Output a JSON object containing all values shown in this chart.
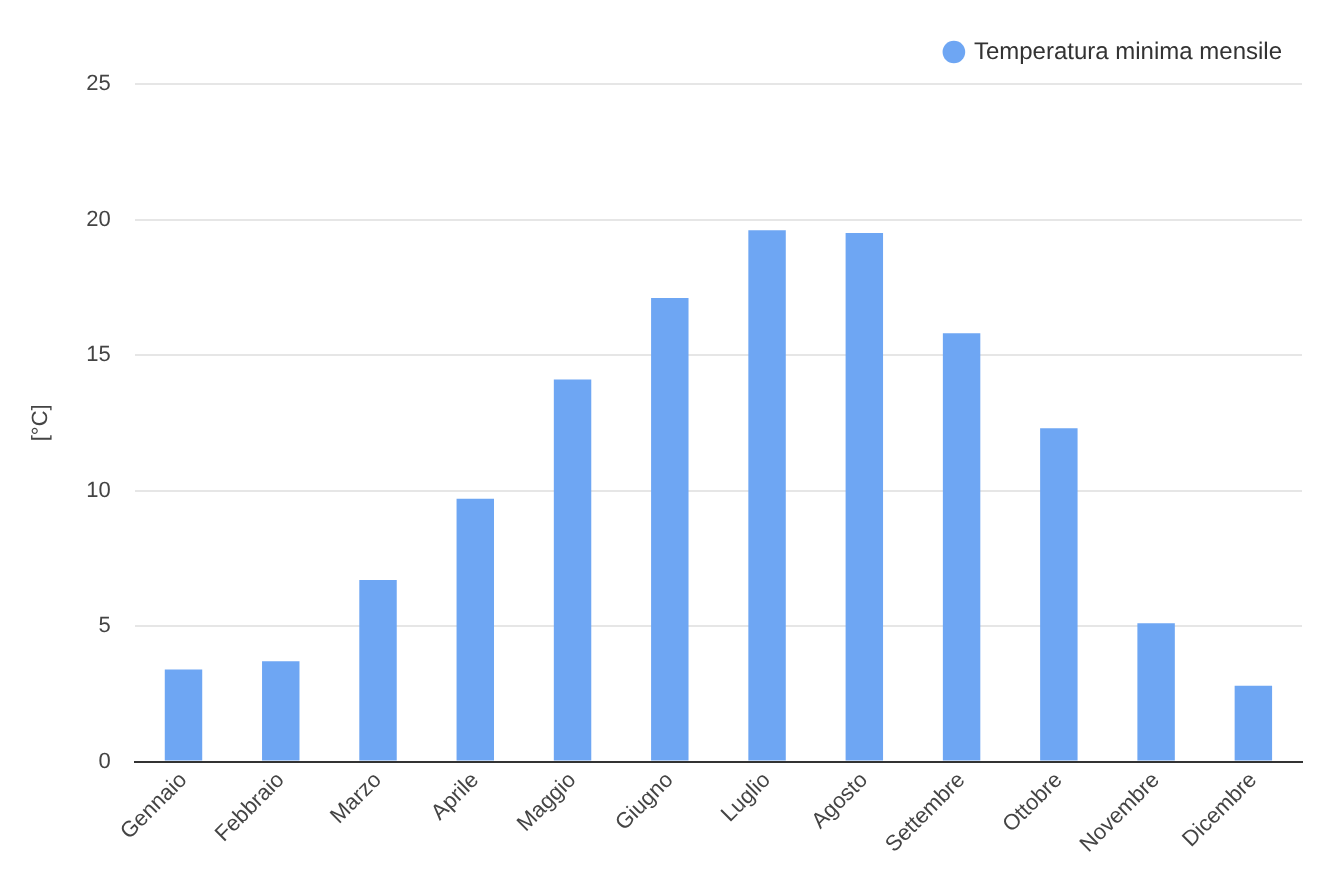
{
  "chart_data": {
    "type": "bar",
    "ylabel": "[°C]",
    "categories": [
      "Gennaio",
      "Febbraio",
      "Marzo",
      "Aprile",
      "Maggio",
      "Giugno",
      "Luglio",
      "Agosto",
      "Settembre",
      "Ottobre",
      "Novembre",
      "Dicembre"
    ],
    "series": [
      {
        "name": "Temperatura minima mensile",
        "color": "#6ea6f3",
        "values": [
          3.4,
          3.7,
          6.7,
          9.7,
          14.1,
          17.1,
          19.6,
          19.5,
          15.8,
          12.3,
          5.1,
          2.8
        ]
      }
    ],
    "ylim": [
      0,
      25
    ],
    "yticks": [
      0,
      5,
      10,
      15,
      20,
      25
    ],
    "grid": "y",
    "legend": "top right"
  }
}
